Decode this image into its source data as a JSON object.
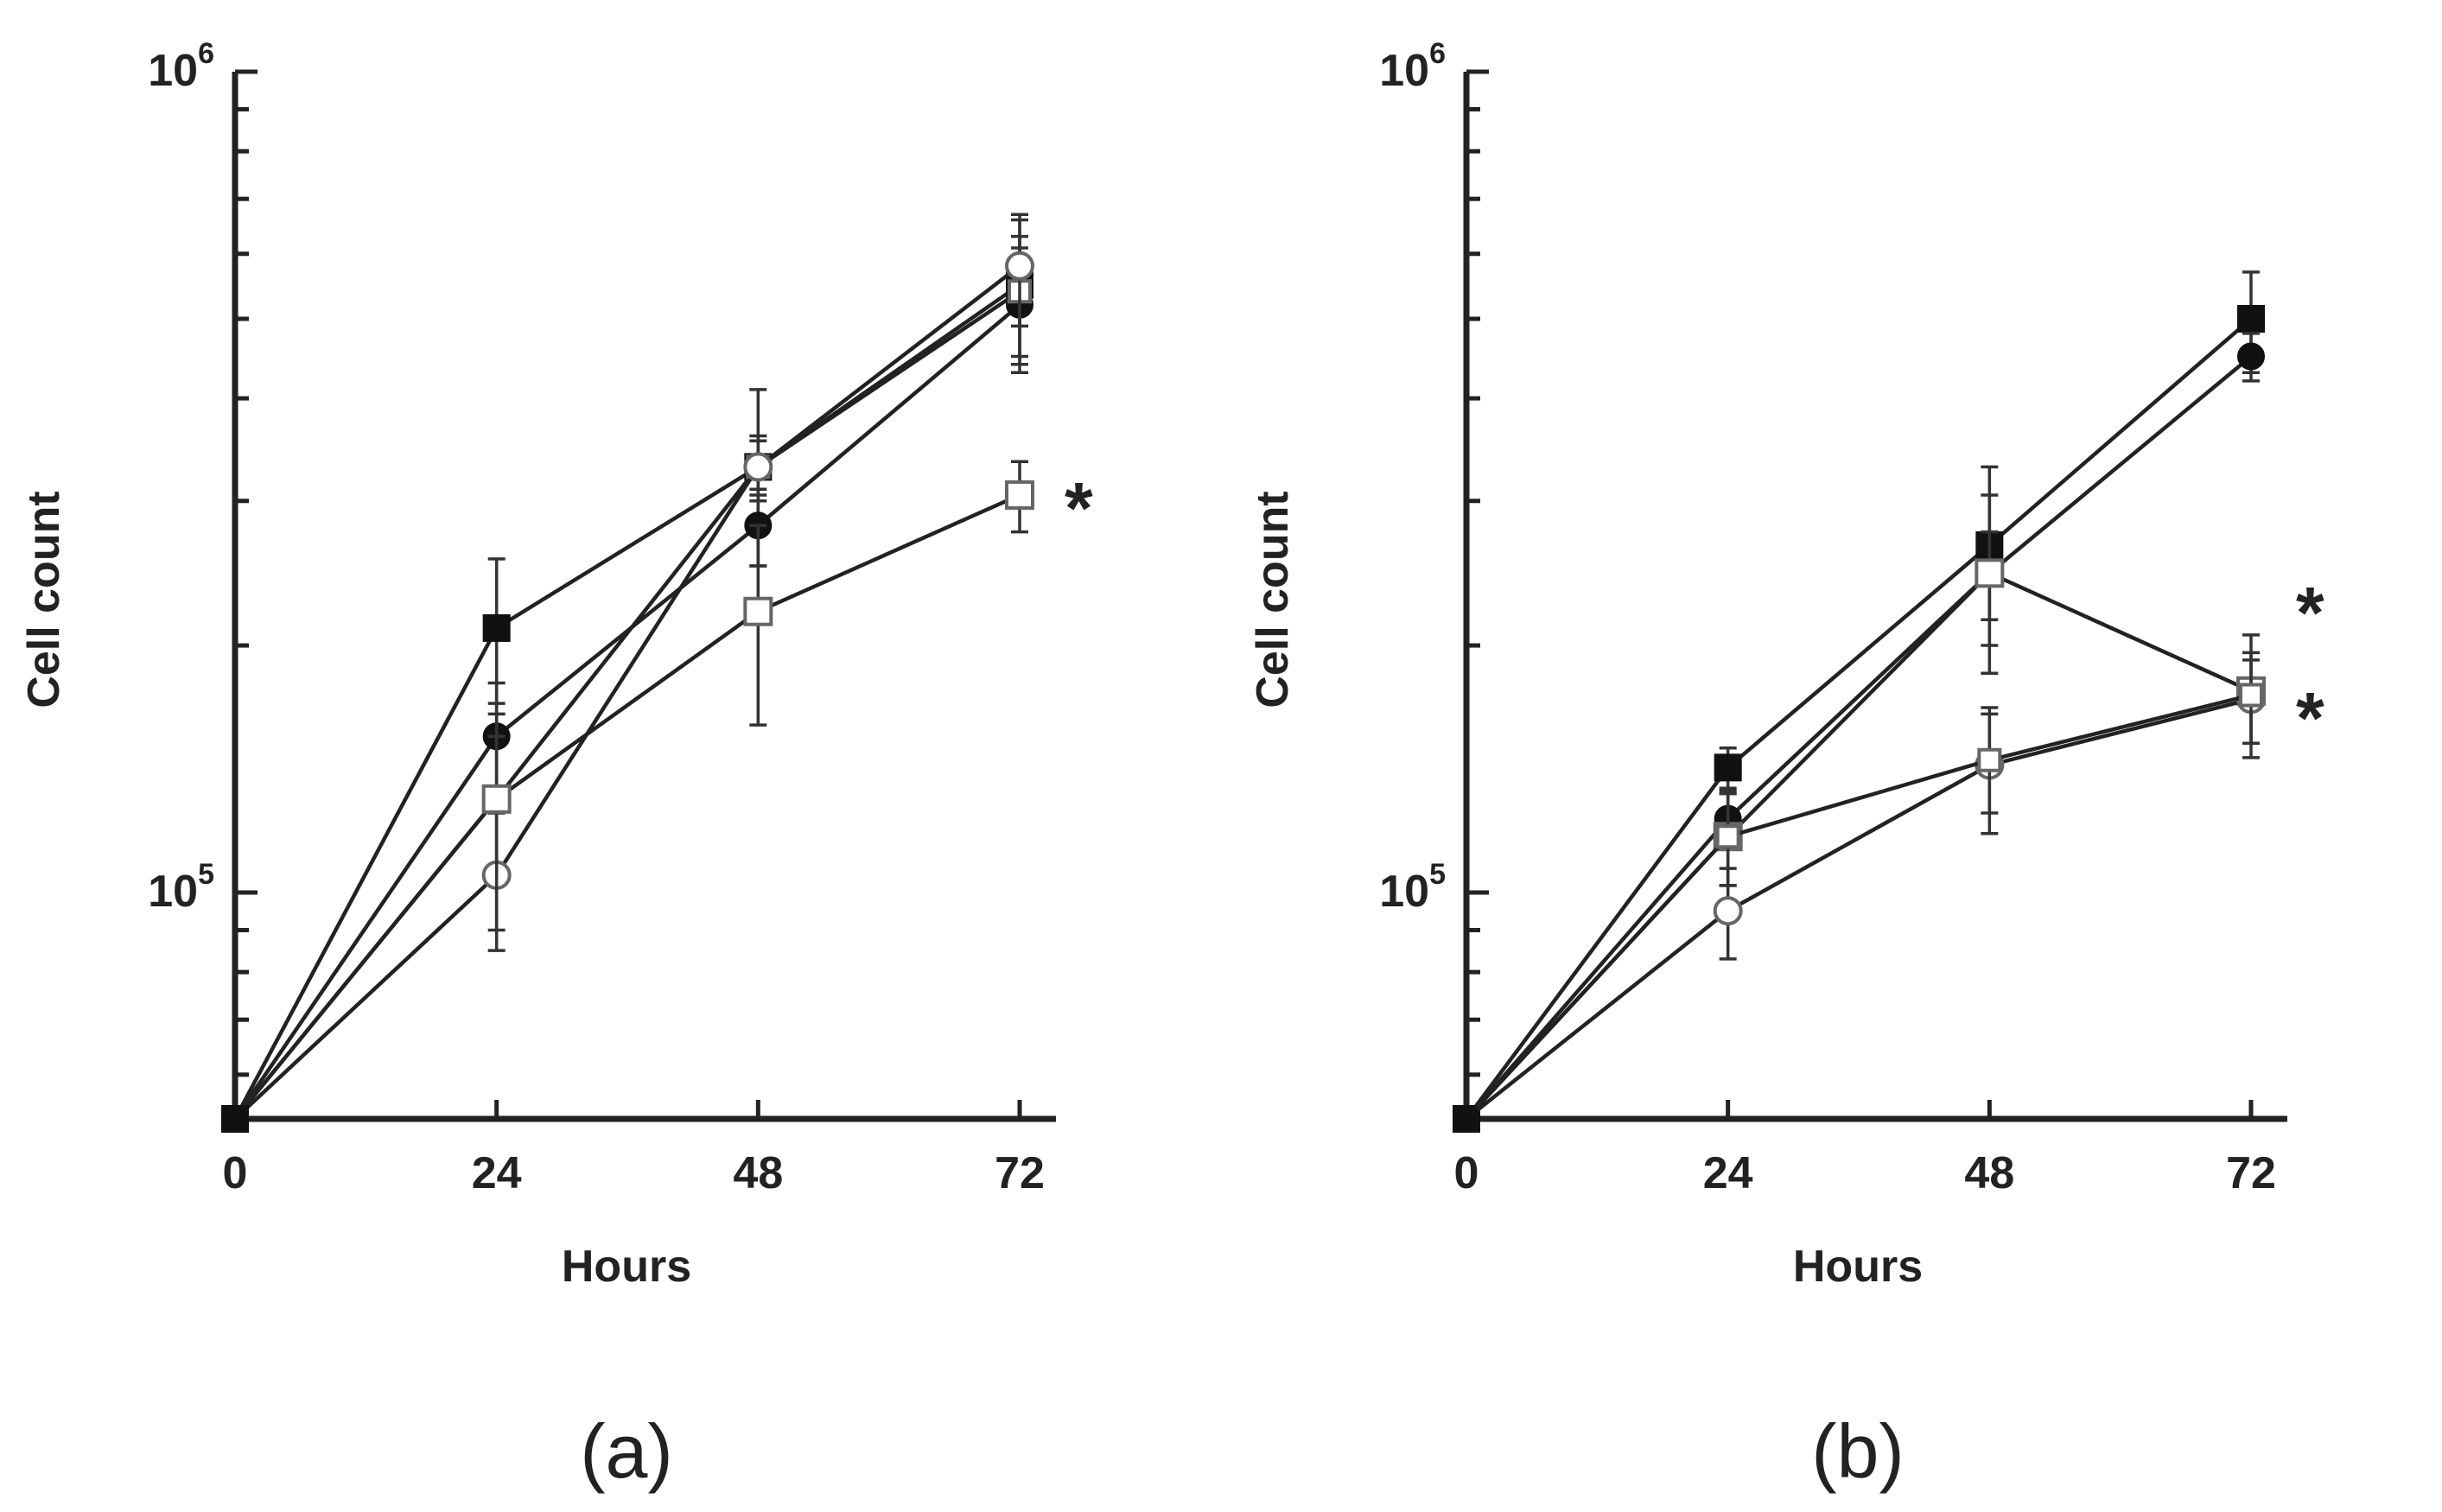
{
  "chart_data": [
    {
      "type": "line",
      "panel_label": "(a)",
      "xlabel": "Hours",
      "ylabel": "Cell count",
      "yscale": "log",
      "ylim": [
        53000,
        1000000
      ],
      "y_ticks": [
        {
          "value": 100000,
          "base": "10",
          "exp": "5"
        },
        {
          "value": 1000000,
          "base": "10",
          "exp": "6"
        }
      ],
      "x_ticks": [
        0,
        24,
        48,
        72
      ],
      "x": [
        0,
        24,
        48,
        72
      ],
      "series": [
        {
          "name": "filled square",
          "marker": "square",
          "fill": "filled",
          "values": [
            53000,
            210000,
            330000,
            550000
          ],
          "err": [
            0,
            45000,
            80000,
            110000
          ]
        },
        {
          "name": "filled circle",
          "marker": "circle",
          "fill": "filled",
          "values": [
            53000,
            155000,
            280000,
            520000
          ],
          "err": [
            0,
            25000,
            30000,
            90000
          ]
        },
        {
          "name": "open square small",
          "marker": "square",
          "fill": "open",
          "values": [
            53000,
            130000,
            330000,
            540000
          ],
          "err": [
            0,
            25000,
            30000,
            90000
          ]
        },
        {
          "name": "open circle",
          "marker": "circle",
          "fill": "open",
          "values": [
            53000,
            105000,
            330000,
            580000
          ],
          "err": [
            0,
            20000,
            25000,
            90000
          ]
        },
        {
          "name": "open square",
          "marker": "square",
          "fill": "open",
          "values": [
            53000,
            130000,
            220000,
            305000
          ],
          "err": [
            0,
            40000,
            60000,
            30000
          ]
        }
      ],
      "annotations": [
        {
          "text": "*",
          "series": "open square"
        }
      ]
    },
    {
      "type": "line",
      "panel_label": "(b)",
      "xlabel": "Hours",
      "ylabel": "Cell count",
      "yscale": "log",
      "ylim": [
        53000,
        1000000
      ],
      "y_ticks": [
        {
          "value": 100000,
          "base": "10",
          "exp": "5"
        },
        {
          "value": 1000000,
          "base": "10",
          "exp": "6"
        }
      ],
      "x_ticks": [
        0,
        24,
        48,
        72
      ],
      "x": [
        0,
        24,
        48,
        72
      ],
      "series": [
        {
          "name": "filled square",
          "marker": "square",
          "fill": "filled",
          "values": [
            53000,
            142000,
            265000,
            500000
          ],
          "err": [
            0,
            8000,
            65000,
            70000
          ]
        },
        {
          "name": "filled circle",
          "marker": "circle",
          "fill": "filled",
          "values": [
            53000,
            123000,
            245000,
            450000
          ],
          "err": [
            0,
            10000,
            30000,
            30000
          ]
        },
        {
          "name": "open square",
          "marker": "square",
          "fill": "open",
          "values": [
            53000,
            117000,
            245000,
            176000
          ],
          "err": [
            0,
            15000,
            60000,
            30000
          ]
        },
        {
          "name": "open circle",
          "marker": "circle",
          "fill": "open",
          "values": [
            53000,
            95000,
            143000,
            172000
          ],
          "err": [
            0,
            12000,
            25000,
            20000
          ]
        },
        {
          "name": "open square small",
          "marker": "square",
          "fill": "open",
          "values": [
            53000,
            117000,
            145000,
            174000
          ],
          "err": [
            0,
            15000,
            20000,
            22000
          ]
        }
      ],
      "annotations": [
        {
          "text": "*",
          "series": "open square"
        },
        {
          "text": "*",
          "series": "open circle"
        }
      ]
    }
  ]
}
